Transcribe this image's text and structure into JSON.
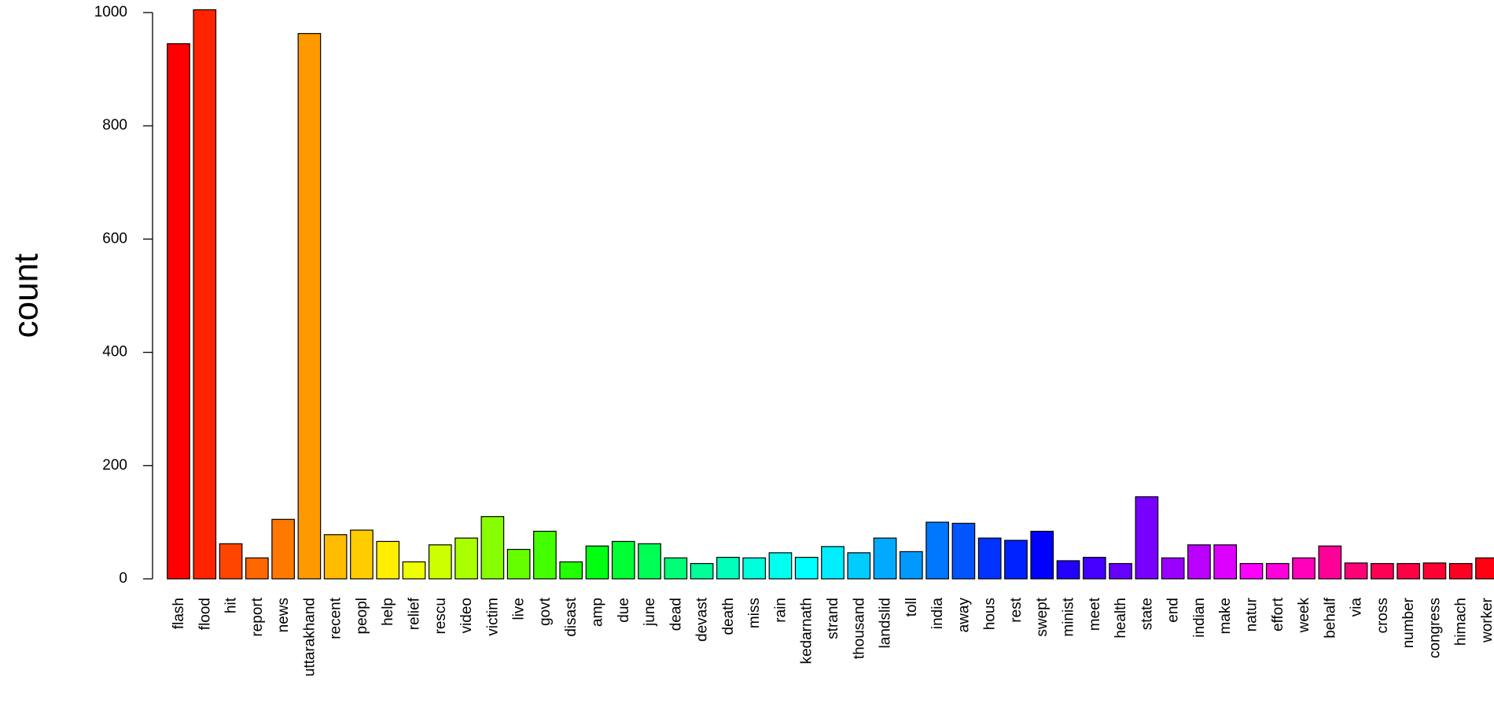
{
  "chart_data": {
    "type": "bar",
    "title": "",
    "xlabel": "",
    "ylabel": "count",
    "ylim": [
      0,
      1000
    ],
    "yticks": [
      0,
      200,
      400,
      600,
      800,
      1000
    ],
    "grid": false,
    "categories": [
      "flash",
      "flood",
      "hit",
      "report",
      "news",
      "uttarakhand",
      "recent",
      "peopl",
      "help",
      "relief",
      "rescu",
      "video",
      "victim",
      "live",
      "govt",
      "disast",
      "amp",
      "due",
      "june",
      "dead",
      "devast",
      "death",
      "miss",
      "rain",
      "kedarnath",
      "strand",
      "thousand",
      "landslid",
      "toll",
      "india",
      "away",
      "hous",
      "rest",
      "swept",
      "minist",
      "meet",
      "health",
      "state",
      "end",
      "indian",
      "make",
      "natur",
      "effort",
      "week",
      "behalf",
      "via",
      "cross",
      "number",
      "congress",
      "himach",
      "worker"
    ],
    "values": [
      945,
      1005,
      62,
      37,
      105,
      963,
      78,
      86,
      66,
      30,
      60,
      72,
      110,
      52,
      84,
      30,
      58,
      66,
      62,
      37,
      27,
      38,
      37,
      46,
      38,
      57,
      46,
      72,
      48,
      100,
      98,
      72,
      68,
      84,
      32,
      38,
      27,
      145,
      37,
      60,
      60,
      27,
      27,
      37,
      58,
      28,
      27,
      27,
      28,
      27,
      37
    ],
    "colors": [
      "#FF0000",
      "#FF2300",
      "#FF4500",
      "#FF6700",
      "#FF7800",
      "#FF9900",
      "#FFBB00",
      "#FFCC00",
      "#FFEE00",
      "#EEFF00",
      "#CCFF00",
      "#AAFF00",
      "#88FF00",
      "#66FF00",
      "#44FF00",
      "#22FF00",
      "#00FF11",
      "#00FF33",
      "#00FF55",
      "#00FF77",
      "#00FF99",
      "#00FFBB",
      "#00FFDD",
      "#00FFEE",
      "#00FFFF",
      "#00EEFF",
      "#00CCFF",
      "#00AAFF",
      "#0099FF",
      "#0077FF",
      "#0055FF",
      "#0033FF",
      "#0022FF",
      "#0000FF",
      "#2200FF",
      "#4400FF",
      "#6600FF",
      "#7700FF",
      "#9900FF",
      "#BB00FF",
      "#DD00FF",
      "#FF00FF",
      "#FF00DD",
      "#FF00BB",
      "#FF0099",
      "#FF0077",
      "#FF0055",
      "#FF0044",
      "#FF0033",
      "#FF0022",
      "#FF0011"
    ]
  }
}
